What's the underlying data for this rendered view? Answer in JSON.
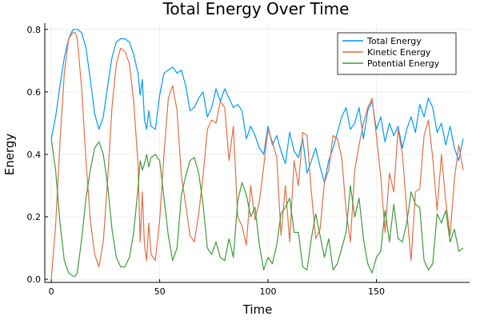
{
  "chart_data": {
    "type": "line",
    "title": "Total Energy Over Time",
    "xlabel": "Time",
    "ylabel": "Energy",
    "xlim": [
      -3,
      193
    ],
    "ylim": [
      -0.01,
      0.82
    ],
    "xticks": [
      0,
      50,
      100,
      150
    ],
    "xtick_labels": [
      "0",
      "50",
      "100",
      "150"
    ],
    "yticks": [
      0.0,
      0.2,
      0.4,
      0.6,
      0.8
    ],
    "ytick_labels": [
      "0.0",
      "0.2",
      "0.4",
      "0.6",
      "0.8"
    ],
    "grid": true,
    "legend_position": "top-right",
    "series": [
      {
        "name": "Total Energy",
        "color": "#009AFA",
        "x": [
          0,
          2,
          4,
          6,
          8,
          10,
          12,
          14,
          16,
          18,
          20,
          22,
          24,
          26,
          28,
          30,
          32,
          34,
          36,
          38,
          40,
          41,
          42,
          43,
          44,
          45,
          46,
          48,
          50,
          52,
          54,
          56,
          58,
          60,
          62,
          64,
          66,
          68,
          70,
          72,
          74,
          76,
          78,
          80,
          82,
          84,
          86,
          88,
          90,
          92,
          94,
          96,
          98,
          100,
          102,
          104,
          106,
          108,
          110,
          112,
          114,
          116,
          118,
          120,
          122,
          124,
          126,
          128,
          130,
          132,
          134,
          136,
          138,
          140,
          142,
          144,
          146,
          148,
          150,
          152,
          154,
          156,
          158,
          160,
          162,
          164,
          166,
          168,
          170,
          172,
          174,
          176,
          178,
          180,
          182,
          184,
          186,
          188,
          190
        ],
        "y": [
          0.45,
          0.52,
          0.62,
          0.71,
          0.77,
          0.8,
          0.8,
          0.79,
          0.74,
          0.64,
          0.53,
          0.48,
          0.52,
          0.62,
          0.71,
          0.76,
          0.77,
          0.77,
          0.76,
          0.72,
          0.66,
          0.59,
          0.64,
          0.51,
          0.48,
          0.54,
          0.49,
          0.48,
          0.59,
          0.66,
          0.67,
          0.68,
          0.66,
          0.67,
          0.62,
          0.54,
          0.55,
          0.58,
          0.6,
          0.52,
          0.55,
          0.61,
          0.57,
          0.61,
          0.58,
          0.55,
          0.56,
          0.54,
          0.45,
          0.49,
          0.46,
          0.42,
          0.4,
          0.49,
          0.43,
          0.46,
          0.41,
          0.37,
          0.47,
          0.41,
          0.39,
          0.45,
          0.34,
          0.38,
          0.42,
          0.36,
          0.31,
          0.38,
          0.42,
          0.47,
          0.52,
          0.55,
          0.48,
          0.5,
          0.55,
          0.45,
          0.54,
          0.57,
          0.48,
          0.52,
          0.44,
          0.5,
          0.46,
          0.49,
          0.42,
          0.48,
          0.52,
          0.47,
          0.56,
          0.52,
          0.58,
          0.55,
          0.47,
          0.5,
          0.43,
          0.49,
          0.42,
          0.38,
          0.45
        ]
      },
      {
        "name": "Kinetic Energy",
        "color": "#E26F46",
        "x": [
          0,
          2,
          4,
          6,
          8,
          10,
          11,
          12,
          14,
          16,
          18,
          20,
          22,
          24,
          26,
          28,
          30,
          32,
          34,
          36,
          38,
          40,
          41,
          42,
          43,
          44,
          45,
          46,
          48,
          50,
          52,
          54,
          56,
          58,
          60,
          62,
          64,
          66,
          68,
          70,
          72,
          74,
          76,
          78,
          80,
          82,
          84,
          86,
          88,
          90,
          92,
          94,
          96,
          98,
          100,
          102,
          104,
          106,
          108,
          110,
          112,
          114,
          116,
          118,
          120,
          122,
          124,
          126,
          128,
          130,
          132,
          134,
          136,
          138,
          140,
          142,
          144,
          146,
          148,
          150,
          152,
          154,
          156,
          158,
          160,
          162,
          164,
          166,
          168,
          170,
          172,
          174,
          176,
          178,
          180,
          182,
          184,
          186,
          188,
          190
        ],
        "y": [
          0.0,
          0.17,
          0.44,
          0.66,
          0.77,
          0.79,
          0.79,
          0.77,
          0.61,
          0.38,
          0.19,
          0.08,
          0.04,
          0.12,
          0.32,
          0.55,
          0.69,
          0.74,
          0.73,
          0.69,
          0.57,
          0.37,
          0.12,
          0.28,
          0.11,
          0.06,
          0.18,
          0.08,
          0.06,
          0.19,
          0.4,
          0.58,
          0.62,
          0.54,
          0.33,
          0.24,
          0.14,
          0.12,
          0.21,
          0.33,
          0.48,
          0.51,
          0.5,
          0.57,
          0.55,
          0.38,
          0.49,
          0.2,
          0.17,
          0.11,
          0.3,
          0.19,
          0.25,
          0.36,
          0.48,
          0.44,
          0.39,
          0.14,
          0.3,
          0.12,
          0.38,
          0.3,
          0.47,
          0.46,
          0.28,
          0.13,
          0.16,
          0.31,
          0.35,
          0.46,
          0.45,
          0.39,
          0.22,
          0.12,
          0.35,
          0.43,
          0.5,
          0.55,
          0.58,
          0.46,
          0.33,
          0.15,
          0.34,
          0.28,
          0.48,
          0.4,
          0.22,
          0.06,
          0.28,
          0.29,
          0.46,
          0.51,
          0.39,
          0.22,
          0.4,
          0.25,
          0.14,
          0.32,
          0.43,
          0.35
        ]
      },
      {
        "name": "Potential Energy",
        "color": "#3E9B3A",
        "x": [
          0,
          2,
          4,
          6,
          8,
          10,
          11,
          12,
          14,
          16,
          18,
          20,
          22,
          24,
          26,
          28,
          30,
          32,
          34,
          36,
          38,
          40,
          41,
          42,
          43,
          44,
          45,
          46,
          48,
          50,
          52,
          54,
          56,
          58,
          60,
          62,
          64,
          66,
          68,
          70,
          72,
          74,
          76,
          78,
          80,
          82,
          84,
          86,
          88,
          90,
          92,
          94,
          96,
          98,
          100,
          102,
          104,
          106,
          108,
          110,
          112,
          114,
          116,
          118,
          120,
          122,
          124,
          126,
          128,
          130,
          132,
          134,
          136,
          138,
          140,
          142,
          144,
          146,
          148,
          150,
          152,
          154,
          156,
          158,
          160,
          162,
          164,
          166,
          168,
          170,
          172,
          174,
          176,
          178,
          180,
          182,
          184,
          186,
          188,
          190
        ],
        "y": [
          0.45,
          0.35,
          0.18,
          0.06,
          0.02,
          0.01,
          0.01,
          0.02,
          0.13,
          0.26,
          0.35,
          0.42,
          0.44,
          0.4,
          0.3,
          0.16,
          0.07,
          0.04,
          0.04,
          0.07,
          0.15,
          0.29,
          0.38,
          0.35,
          0.37,
          0.4,
          0.36,
          0.39,
          0.4,
          0.38,
          0.26,
          0.14,
          0.06,
          0.1,
          0.27,
          0.33,
          0.38,
          0.39,
          0.34,
          0.24,
          0.1,
          0.08,
          0.12,
          0.07,
          0.06,
          0.13,
          0.07,
          0.25,
          0.31,
          0.27,
          0.2,
          0.23,
          0.11,
          0.03,
          0.07,
          0.05,
          0.11,
          0.21,
          0.23,
          0.26,
          0.15,
          0.15,
          0.04,
          0.03,
          0.13,
          0.21,
          0.14,
          0.07,
          0.13,
          0.03,
          0.05,
          0.1,
          0.15,
          0.3,
          0.2,
          0.26,
          0.13,
          0.05,
          0.02,
          0.07,
          0.09,
          0.22,
          0.12,
          0.24,
          0.13,
          0.12,
          0.18,
          0.28,
          0.24,
          0.23,
          0.06,
          0.03,
          0.05,
          0.21,
          0.18,
          0.22,
          0.12,
          0.16,
          0.09,
          0.1
        ]
      }
    ]
  }
}
